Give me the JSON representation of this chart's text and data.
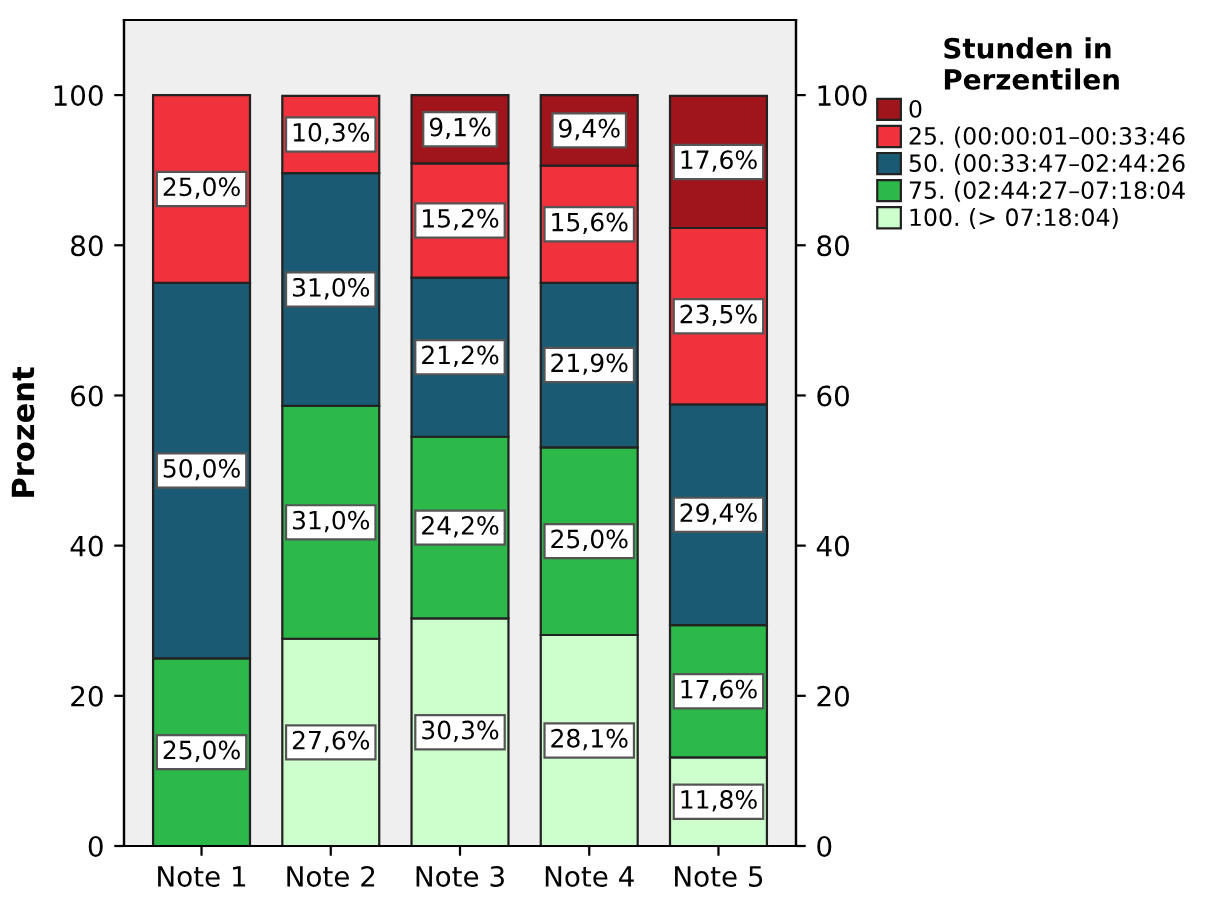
{
  "chart_data": {
    "type": "bar",
    "stacked": true,
    "ylabel": "Prozent",
    "legend_title": "Stunden in\nPerzentilen",
    "legend": "top right",
    "grid": false,
    "categories": [
      "Note 1",
      "Note 2",
      "Note 3",
      "Note 4",
      "Note 5"
    ],
    "ylim": [
      0,
      110
    ],
    "yticks": [
      0,
      20,
      40,
      60,
      80,
      100
    ],
    "y2lim": [
      0,
      110
    ],
    "y2ticks": [
      0,
      20,
      40,
      60,
      80,
      100
    ],
    "series": [
      {
        "name": "100. (> 07:18:04)",
        "color": "#ccffcc",
        "values": [
          null,
          27.6,
          30.3,
          28.1,
          11.8
        ],
        "value_labels": [
          null,
          "27,6%",
          "30,3%",
          "28,1%",
          "11,8%"
        ]
      },
      {
        "name": "75. (02:44:27–07:18:04",
        "color": "#2db84a",
        "values": [
          25.0,
          31.0,
          24.2,
          25.0,
          17.6
        ],
        "value_labels": [
          "25,0%",
          "31,0%",
          "24,2%",
          "25,0%",
          "17,6%"
        ]
      },
      {
        "name": "50. (00:33:47–02:44:26",
        "color": "#1b5a73",
        "values": [
          50.0,
          31.0,
          21.2,
          21.9,
          29.4
        ],
        "value_labels": [
          "50,0%",
          "31,0%",
          "21,2%",
          "21,9%",
          "29,4%"
        ]
      },
      {
        "name": "25. (00:00:01–00:33:46",
        "color": "#f0323c",
        "values": [
          25.0,
          10.3,
          15.2,
          15.6,
          23.5
        ],
        "value_labels": [
          "25,0%",
          "10,3%",
          "15,2%",
          "15,6%",
          "23,5%"
        ]
      },
      {
        "name": "0",
        "color": "#a0141c",
        "values": [
          null,
          null,
          9.1,
          9.4,
          17.6
        ],
        "value_labels": [
          null,
          null,
          "9,1%",
          "9,4%",
          "17,6%"
        ]
      }
    ]
  }
}
